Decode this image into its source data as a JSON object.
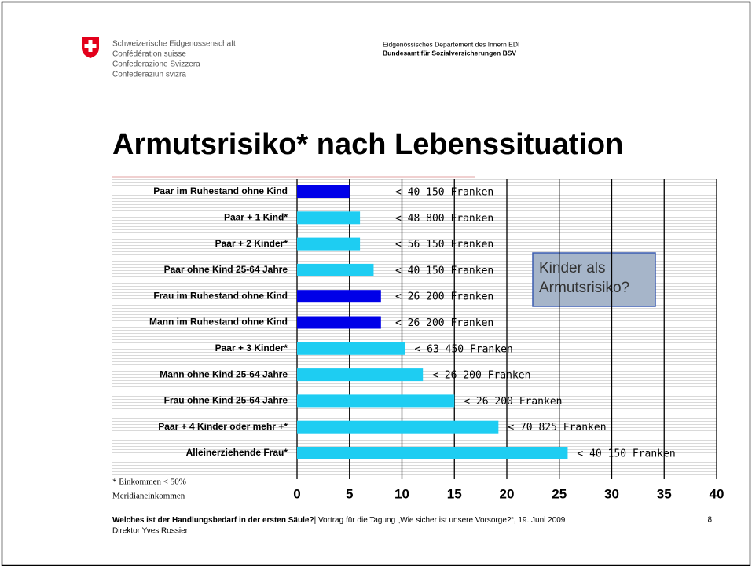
{
  "header": {
    "confederation": [
      "Schweizerische Eidgenossenschaft",
      "Confédération suisse",
      "Confederazione Svizzera",
      "Confederaziun svizra"
    ],
    "department": "Eidgenössisches Departement des Innern EDI",
    "office": "Bundesamt für Sozialversicherungen BSV"
  },
  "chart_data": {
    "type": "bar",
    "orientation": "horizontal",
    "title": "Armutsrisiko* nach Lebenssituation",
    "categories": [
      "Paar im Ruhestand ohne Kind",
      "Paar + 1 Kind*",
      "Paar + 2 Kinder*",
      "Paar ohne Kind 25-64 Jahre",
      "Frau im Ruhestand ohne Kind",
      "Mann im Ruhestand ohne Kind",
      "Paar + 3 Kinder*",
      "Mann ohne Kind 25-64 Jahre",
      "Frau ohne Kind 25-64 Jahre",
      "Paar + 4 Kinder oder mehr +*",
      "Alleinerziehende Frau*"
    ],
    "values": [
      5,
      6,
      6,
      7.3,
      8,
      8,
      10.3,
      12,
      15,
      19.2,
      25.8
    ],
    "colors": [
      "#0000e8",
      "#1ecdf2",
      "#1ecdf2",
      "#1ecdf2",
      "#0000e8",
      "#0000e8",
      "#1ecdf2",
      "#1ecdf2",
      "#1ecdf2",
      "#1ecdf2",
      "#1ecdf2"
    ],
    "bar_notes": [
      "< 40 150 Franken",
      "< 48 800 Franken",
      "< 56 150 Franken",
      "< 40 150 Franken",
      "< 26 200 Franken",
      "< 26 200 Franken",
      "< 63 450 Franken",
      "< 26 200 Franken",
      "< 26 200 Franken",
      "< 70 825 Franken",
      "< 40 150 Franken"
    ],
    "xlim": [
      0,
      40
    ],
    "xticks": [
      0,
      5,
      10,
      15,
      20,
      25,
      30,
      35,
      40
    ],
    "grid": true,
    "callout": [
      "Kinder als",
      "Armutsrisiko?"
    ],
    "footnote": [
      "* Einkommen < 50%",
      "Meridianeinkommen"
    ]
  },
  "footer": {
    "talk_title": "Welches ist der Handlungsbedarf in der ersten Säule?",
    "talk_rest": "| Vortrag für die Tagung „Wie sicher ist unsere Vorsorge?“, 19. Juni 2009",
    "speaker": "Direktor Yves Rossier",
    "page": "8"
  }
}
